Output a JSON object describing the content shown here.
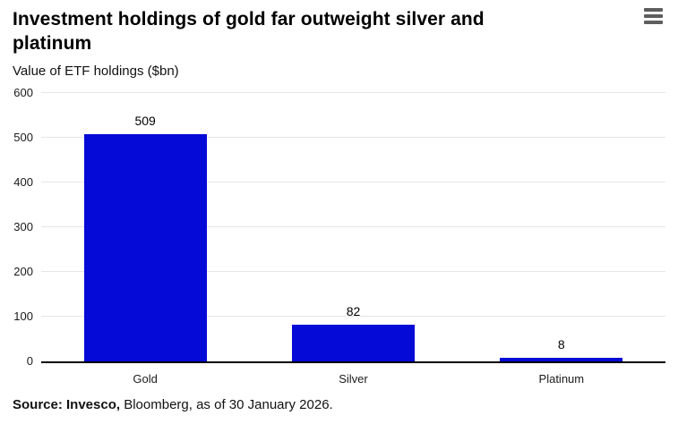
{
  "header": {
    "title": "Investment holdings of gold far outweight silver and platinum",
    "subtitle": "Value of ETF holdings ($bn)"
  },
  "menu": {
    "icon": "hamburger-menu-icon"
  },
  "chart_data": {
    "type": "bar",
    "title": "Investment holdings of gold far outweight silver and platinum",
    "subtitle": "Value of ETF holdings ($bn)",
    "categories": [
      "Gold",
      "Silver",
      "Platinum"
    ],
    "values": [
      509,
      82,
      8
    ],
    "value_labels_shown": true,
    "xlabel": "",
    "ylabel": "",
    "ylim": [
      0,
      600
    ],
    "yticks": [
      0,
      100,
      200,
      300,
      400,
      500,
      600
    ],
    "grid": true,
    "legend": "none",
    "bar_color": "#050ad7",
    "gridline_color": "#e5e5e5",
    "baseline_color": "#000000"
  },
  "footer": {
    "source_bold": "Source: Invesco, ",
    "source_rest": "Bloomberg, as of 30 January 2026."
  }
}
